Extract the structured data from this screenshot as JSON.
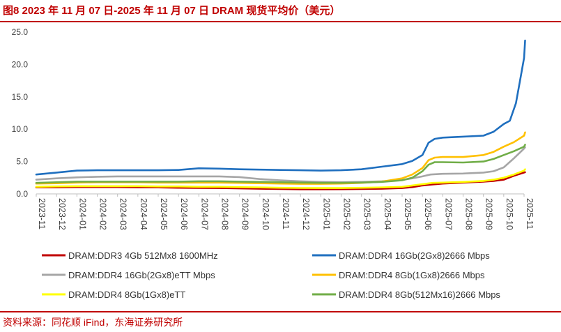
{
  "title": "图8 2023 年 11 月 07 日-2025 年 11 月 07 日 DRAM 现货平均价（美元）",
  "source": "资料来源：同花顺 iFind，东海证券研究所",
  "chart_data": {
    "type": "line",
    "title": "图8 2023 年 11 月 07 日-2025 年 11 月 07 日 DRAM 现货平均价（美元）",
    "xlabel": "",
    "ylabel": "",
    "ylim": [
      0,
      25
    ],
    "yticks": [
      "0.0",
      "5.0",
      "10.0",
      "15.0",
      "20.0",
      "25.0"
    ],
    "categories": [
      "2023-11",
      "2023-12",
      "2024-01",
      "2024-02",
      "2024-03",
      "2024-04",
      "2024-05",
      "2024-06",
      "2024-07",
      "2024-08",
      "2024-09",
      "2024-10",
      "2024-11",
      "2024-12",
      "2025-01",
      "2025-02",
      "2025-03",
      "2025-04",
      "2025-05",
      "2025-06",
      "2025-07",
      "2025-08",
      "2025-09",
      "2025-10",
      "2025-11"
    ],
    "legend_position": "bottom",
    "series": [
      {
        "name": "DRAM:DDR3 4Gb 512Mx8 1600MHz",
        "color": "#c00000",
        "points": [
          [
            0,
            1.0
          ],
          [
            1,
            1.0
          ],
          [
            2,
            1.05
          ],
          [
            3,
            1.05
          ],
          [
            4,
            1.05
          ],
          [
            5,
            1.0
          ],
          [
            6,
            1.0
          ],
          [
            7,
            0.95
          ],
          [
            8,
            0.92
          ],
          [
            9,
            0.9
          ],
          [
            10,
            0.85
          ],
          [
            11,
            0.8
          ],
          [
            12,
            0.75
          ],
          [
            13,
            0.7
          ],
          [
            14,
            0.7
          ],
          [
            15,
            0.72
          ],
          [
            16,
            0.75
          ],
          [
            17,
            0.8
          ],
          [
            18,
            0.9
          ],
          [
            18.5,
            1.05
          ],
          [
            19,
            1.3
          ],
          [
            19.5,
            1.45
          ],
          [
            20,
            1.6
          ],
          [
            21,
            1.75
          ],
          [
            22,
            1.9
          ],
          [
            22.5,
            2.0
          ],
          [
            23,
            2.2
          ],
          [
            23.5,
            2.8
          ],
          [
            24,
            3.3
          ],
          [
            24.05,
            3.35
          ]
        ]
      },
      {
        "name": "DRAM:DDR4 16Gb(2Gx8)2666 Mbps",
        "color": "#1f6fbf",
        "points": [
          [
            0,
            3.0
          ],
          [
            1,
            3.3
          ],
          [
            2,
            3.6
          ],
          [
            3,
            3.65
          ],
          [
            4,
            3.65
          ],
          [
            5,
            3.65
          ],
          [
            6,
            3.65
          ],
          [
            7,
            3.7
          ],
          [
            8,
            3.95
          ],
          [
            9,
            3.9
          ],
          [
            10,
            3.8
          ],
          [
            11,
            3.75
          ],
          [
            12,
            3.7
          ],
          [
            13,
            3.65
          ],
          [
            14,
            3.6
          ],
          [
            15,
            3.65
          ],
          [
            16,
            3.8
          ],
          [
            17,
            4.2
          ],
          [
            18,
            4.6
          ],
          [
            18.5,
            5.1
          ],
          [
            19,
            6.0
          ],
          [
            19.3,
            7.9
          ],
          [
            19.6,
            8.5
          ],
          [
            20,
            8.7
          ],
          [
            21,
            8.85
          ],
          [
            22,
            9.0
          ],
          [
            22.5,
            9.6
          ],
          [
            23,
            10.8
          ],
          [
            23.3,
            11.3
          ],
          [
            23.6,
            14.0
          ],
          [
            23.8,
            17.5
          ],
          [
            24,
            21.0
          ],
          [
            24.05,
            23.7
          ]
        ]
      },
      {
        "name": "DRAM:DDR4 16Gb(2Gx8)eTT Mbps",
        "color": "#a6a6a6",
        "points": [
          [
            0,
            2.2
          ],
          [
            1,
            2.4
          ],
          [
            2,
            2.55
          ],
          [
            3,
            2.65
          ],
          [
            4,
            2.7
          ],
          [
            5,
            2.7
          ],
          [
            6,
            2.7
          ],
          [
            7,
            2.7
          ],
          [
            8,
            2.7
          ],
          [
            9,
            2.7
          ],
          [
            10,
            2.6
          ],
          [
            11,
            2.3
          ],
          [
            12,
            2.1
          ],
          [
            13,
            1.95
          ],
          [
            14,
            1.85
          ],
          [
            15,
            1.8
          ],
          [
            16,
            1.85
          ],
          [
            17,
            1.95
          ],
          [
            18,
            2.15
          ],
          [
            18.5,
            2.4
          ],
          [
            19,
            2.7
          ],
          [
            19.4,
            3.0
          ],
          [
            20,
            3.1
          ],
          [
            21,
            3.15
          ],
          [
            22,
            3.3
          ],
          [
            22.5,
            3.5
          ],
          [
            23,
            4.1
          ],
          [
            23.5,
            5.5
          ],
          [
            24,
            7.0
          ],
          [
            24.05,
            7.2
          ]
        ]
      },
      {
        "name": "DRAM:DDR4 8Gb(1Gx8)2666 Mbps",
        "color": "#ffc000",
        "points": [
          [
            0,
            1.6
          ],
          [
            1,
            1.65
          ],
          [
            2,
            1.75
          ],
          [
            3,
            1.8
          ],
          [
            4,
            1.8
          ],
          [
            5,
            1.8
          ],
          [
            6,
            1.75
          ],
          [
            7,
            1.75
          ],
          [
            8,
            1.75
          ],
          [
            9,
            1.75
          ],
          [
            10,
            1.7
          ],
          [
            11,
            1.65
          ],
          [
            12,
            1.6
          ],
          [
            13,
            1.55
          ],
          [
            14,
            1.55
          ],
          [
            15,
            1.6
          ],
          [
            16,
            1.7
          ],
          [
            17,
            1.9
          ],
          [
            18,
            2.4
          ],
          [
            18.5,
            3.0
          ],
          [
            19,
            4.0
          ],
          [
            19.3,
            5.2
          ],
          [
            19.6,
            5.6
          ],
          [
            20,
            5.7
          ],
          [
            21,
            5.7
          ],
          [
            22,
            6.0
          ],
          [
            22.5,
            6.5
          ],
          [
            23,
            7.3
          ],
          [
            23.5,
            8.0
          ],
          [
            24,
            9.0
          ],
          [
            24.05,
            9.5
          ]
        ]
      },
      {
        "name": "DRAM:DDR4 8Gb(1Gx8)eTT",
        "color": "#ffff00",
        "points": [
          [
            0,
            1.1
          ],
          [
            1,
            1.15
          ],
          [
            2,
            1.2
          ],
          [
            3,
            1.2
          ],
          [
            4,
            1.2
          ],
          [
            5,
            1.2
          ],
          [
            6,
            1.15
          ],
          [
            7,
            1.15
          ],
          [
            8,
            1.1
          ],
          [
            9,
            1.1
          ],
          [
            10,
            1.05
          ],
          [
            11,
            1.0
          ],
          [
            12,
            0.95
          ],
          [
            13,
            0.92
          ],
          [
            14,
            0.9
          ],
          [
            15,
            0.9
          ],
          [
            16,
            0.95
          ],
          [
            17,
            1.0
          ],
          [
            18,
            1.1
          ],
          [
            18.5,
            1.3
          ],
          [
            19,
            1.5
          ],
          [
            19.5,
            1.7
          ],
          [
            20,
            1.75
          ],
          [
            21,
            1.85
          ],
          [
            22,
            2.0
          ],
          [
            22.5,
            2.2
          ],
          [
            23,
            2.5
          ],
          [
            23.5,
            3.0
          ],
          [
            24,
            3.6
          ],
          [
            24.05,
            3.8
          ]
        ]
      },
      {
        "name": "DRAM:DDR4 8Gb(512Mx16)2666 Mbps",
        "color": "#70ad47",
        "points": [
          [
            0,
            1.7
          ],
          [
            1,
            1.8
          ],
          [
            2,
            1.9
          ],
          [
            3,
            1.9
          ],
          [
            4,
            1.9
          ],
          [
            5,
            1.9
          ],
          [
            6,
            1.9
          ],
          [
            7,
            1.9
          ],
          [
            8,
            1.95
          ],
          [
            9,
            1.95
          ],
          [
            10,
            1.9
          ],
          [
            11,
            1.85
          ],
          [
            12,
            1.8
          ],
          [
            13,
            1.75
          ],
          [
            14,
            1.7
          ],
          [
            15,
            1.7
          ],
          [
            16,
            1.75
          ],
          [
            17,
            1.85
          ],
          [
            18,
            2.1
          ],
          [
            18.5,
            2.5
          ],
          [
            19,
            3.5
          ],
          [
            19.3,
            4.5
          ],
          [
            19.6,
            4.9
          ],
          [
            20,
            4.9
          ],
          [
            21,
            4.85
          ],
          [
            22,
            5.0
          ],
          [
            22.5,
            5.4
          ],
          [
            23,
            6.0
          ],
          [
            23.5,
            6.6
          ],
          [
            24,
            7.3
          ],
          [
            24.05,
            7.6
          ]
        ]
      }
    ]
  }
}
